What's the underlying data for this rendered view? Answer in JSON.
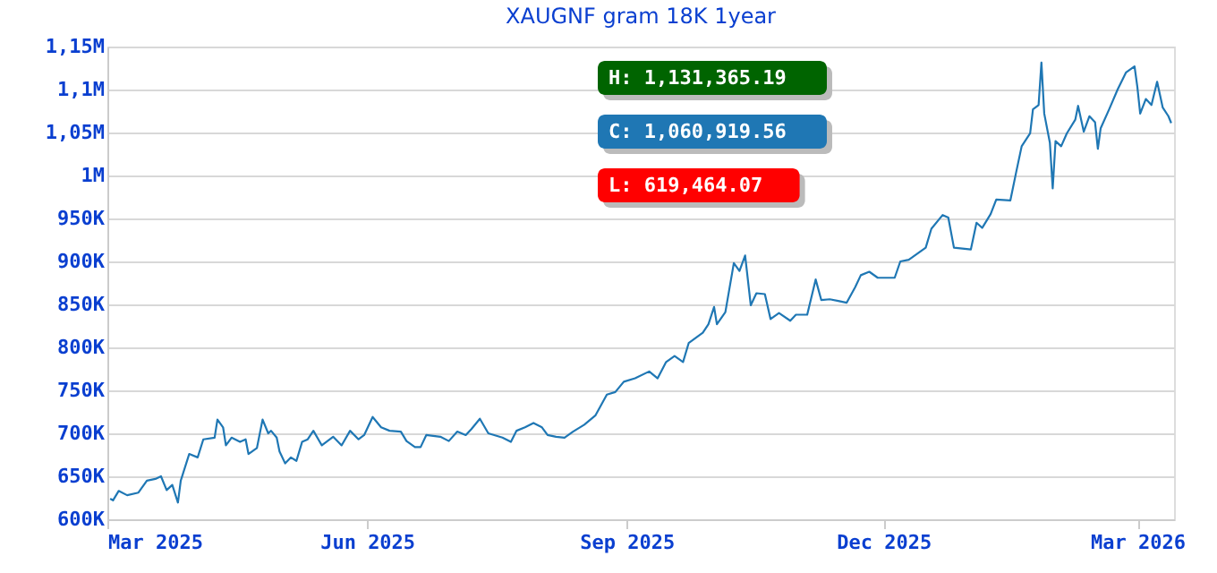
{
  "chart_data": {
    "type": "line",
    "title": "XAUGNF gram 18K 1year",
    "x": [
      "2025-03-02",
      "2025-03-03",
      "2025-03-05",
      "2025-03-08",
      "2025-03-12",
      "2025-03-15",
      "2025-03-18",
      "2025-03-20",
      "2025-03-22",
      "2025-03-24",
      "2025-03-26",
      "2025-03-27",
      "2025-03-30",
      "2025-04-02",
      "2025-04-04",
      "2025-04-08",
      "2025-04-09",
      "2025-04-11",
      "2025-04-12",
      "2025-04-14",
      "2025-04-17",
      "2025-04-19",
      "2025-04-20",
      "2025-04-23",
      "2025-04-25",
      "2025-04-27",
      "2025-04-28",
      "2025-04-30",
      "2025-05-01",
      "2025-05-03",
      "2025-05-05",
      "2025-05-07",
      "2025-05-09",
      "2025-05-11",
      "2025-05-13",
      "2025-05-16",
      "2025-05-20",
      "2025-05-23",
      "2025-05-26",
      "2025-05-29",
      "2025-05-31",
      "2025-06-03",
      "2025-06-06",
      "2025-06-09",
      "2025-06-13",
      "2025-06-15",
      "2025-06-18",
      "2025-06-20",
      "2025-06-22",
      "2025-06-27",
      "2025-06-30",
      "2025-07-03",
      "2025-07-06",
      "2025-07-08",
      "2025-07-11",
      "2025-07-14",
      "2025-07-19",
      "2025-07-22",
      "2025-07-24",
      "2025-07-27",
      "2025-07-30",
      "2025-08-02",
      "2025-08-04",
      "2025-08-07",
      "2025-08-10",
      "2025-08-13",
      "2025-08-17",
      "2025-08-21",
      "2025-08-25",
      "2025-08-28",
      "2025-08-31",
      "2025-09-04",
      "2025-09-09",
      "2025-09-12",
      "2025-09-15",
      "2025-09-18",
      "2025-09-21",
      "2025-09-23",
      "2025-09-28",
      "2025-09-30",
      "2025-10-02",
      "2025-10-03",
      "2025-10-06",
      "2025-10-09",
      "2025-10-11",
      "2025-10-13",
      "2025-10-15",
      "2025-10-17",
      "2025-10-20",
      "2025-10-22",
      "2025-10-25",
      "2025-10-29",
      "2025-10-31",
      "2025-11-04",
      "2025-11-07",
      "2025-11-09",
      "2025-11-12",
      "2025-11-15",
      "2025-11-18",
      "2025-11-21",
      "2025-11-23",
      "2025-11-26",
      "2025-11-29",
      "2025-12-05",
      "2025-12-07",
      "2025-12-10",
      "2025-12-13",
      "2025-12-16",
      "2025-12-18",
      "2025-12-22",
      "2025-12-24",
      "2025-12-26",
      "2026-01-01",
      "2026-01-03",
      "2026-01-05",
      "2026-01-08",
      "2026-01-10",
      "2026-01-15",
      "2026-01-17",
      "2026-01-19",
      "2026-01-22",
      "2026-01-23",
      "2026-01-25",
      "2026-01-26",
      "2026-01-27",
      "2026-01-29",
      "2026-01-30",
      "2026-01-31",
      "2026-02-02",
      "2026-02-04",
      "2026-02-07",
      "2026-02-08",
      "2026-02-10",
      "2026-02-12",
      "2026-02-14",
      "2026-02-15",
      "2026-02-16",
      "2026-02-19",
      "2026-02-22",
      "2026-02-25",
      "2026-02-28",
      "2026-03-01",
      "2026-03-02",
      "2026-03-04",
      "2026-03-06",
      "2026-03-08",
      "2026-03-10",
      "2026-03-12",
      "2026-03-13"
    ],
    "series": [
      {
        "color": "#1f77b4",
        "values": [
          624000,
          622000,
          633000,
          628000,
          631000,
          645000,
          647000,
          650000,
          634000,
          640000,
          619464.07,
          645000,
          676000,
          672000,
          693000,
          695000,
          716000,
          707000,
          686000,
          695000,
          690000,
          693000,
          676000,
          683000,
          716000,
          700000,
          703000,
          695000,
          679000,
          665000,
          672000,
          668000,
          690000,
          693000,
          703000,
          686000,
          696000,
          686000,
          703000,
          693000,
          698000,
          719000,
          707000,
          703000,
          702000,
          691000,
          684000,
          684000,
          698000,
          696000,
          691000,
          702000,
          698000,
          705000,
          717000,
          700000,
          695000,
          690000,
          703000,
          707000,
          712000,
          707000,
          698000,
          696000,
          695000,
          702000,
          710000,
          721000,
          745000,
          748000,
          760000,
          764000,
          772000,
          764000,
          783000,
          790000,
          783000,
          805000,
          817000,
          827000,
          847000,
          827000,
          841000,
          898000,
          889000,
          907000,
          849000,
          863000,
          862000,
          833000,
          840000,
          831000,
          838000,
          838000,
          879000,
          855000,
          856000,
          854000,
          852000,
          870000,
          884000,
          888000,
          881000,
          881000,
          900000,
          902000,
          909000,
          916000,
          938000,
          954000,
          951000,
          916000,
          914000,
          945000,
          939000,
          955000,
          972000,
          971000,
          1003000,
          1034000,
          1049000,
          1077000,
          1082000,
          1131365.19,
          1072000,
          1038000,
          985000,
          1040000,
          1034000,
          1049000,
          1065000,
          1081000,
          1051000,
          1069000,
          1062000,
          1031000,
          1055000,
          1077000,
          1100000,
          1120000,
          1127000,
          1103000,
          1072000,
          1089000,
          1082000,
          1109000,
          1079000,
          1069000,
          1060919.56
        ]
      }
    ],
    "xlim": [
      "2025-03-01",
      "2026-03-14"
    ],
    "xticks": [
      {
        "value": "2025-03-01",
        "label": "Mar 2025"
      },
      {
        "value": "2025-06-01",
        "label": "Jun 2025"
      },
      {
        "value": "2025-09-01",
        "label": "Sep 2025"
      },
      {
        "value": "2025-12-01",
        "label": "Dec 2025"
      },
      {
        "value": "2026-03-01",
        "label": "Mar 2026"
      }
    ],
    "ylim": [
      600000,
      1150000
    ],
    "yticks": [
      {
        "value": 600000,
        "label": "600K"
      },
      {
        "value": 650000,
        "label": "650K"
      },
      {
        "value": 700000,
        "label": "700K"
      },
      {
        "value": 750000,
        "label": "750K"
      },
      {
        "value": 800000,
        "label": "800K"
      },
      {
        "value": 850000,
        "label": "850K"
      },
      {
        "value": 900000,
        "label": "900K"
      },
      {
        "value": 950000,
        "label": "950K"
      },
      {
        "value": 1000000,
        "label": "1M"
      },
      {
        "value": 1050000,
        "label": "1,05M"
      },
      {
        "value": 1100000,
        "label": "1,1M"
      },
      {
        "value": 1150000,
        "label": "1,15M"
      }
    ],
    "grid": "y",
    "annotations": [
      "H: 1,131,365.19",
      "C: 1,060,919.56",
      "L: 619,464.07"
    ]
  }
}
